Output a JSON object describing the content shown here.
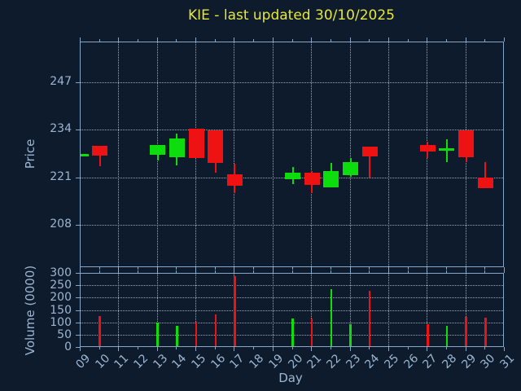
{
  "title": "KIE - last updated 30/10/2025",
  "colors": {
    "background": "#0e1b2c",
    "frame": "#84a7c8",
    "grid": "#b6c0ca",
    "label": "#9cb6d2",
    "title": "#e6e63c",
    "up": "#0ddd0d",
    "down": "#ee1212"
  },
  "chart_data": {
    "type": "candlestick+volume-bar",
    "title": "KIE - last updated 30/10/2025",
    "xlabel": "Day",
    "grid": "dotted, on both panels",
    "price_axis": {
      "label": "Price",
      "ticks": [
        208,
        221,
        234,
        247
      ],
      "range": [
        196.5,
        258
      ]
    },
    "volume_axis": {
      "label": "Volume (0000)",
      "ticks": [
        0,
        50,
        100,
        150,
        200,
        250,
        300
      ],
      "range": [
        0,
        300
      ]
    },
    "x_axis": {
      "tick_labels": [
        "09",
        "10",
        "11",
        "12",
        "13",
        "14",
        "15",
        "16",
        "17",
        "18",
        "19",
        "20",
        "21",
        "22",
        "23",
        "24",
        "25",
        "26",
        "27",
        "28",
        "29",
        "30",
        "31"
      ],
      "range": [
        9,
        31
      ],
      "grid_days": [
        11,
        13,
        15,
        17,
        19,
        21,
        23,
        25,
        27,
        29,
        31
      ]
    },
    "candles": [
      {
        "day": 9,
        "open": 227.2,
        "high": 227.6,
        "low": 227.2,
        "close": 227.5,
        "volume": 0,
        "dir": "up"
      },
      {
        "day": 10,
        "open": 229.9,
        "high": 229.9,
        "low": 224.3,
        "close": 227.1,
        "volume": 130,
        "dir": "down"
      },
      {
        "day": 13,
        "open": 227.3,
        "high": 230.1,
        "low": 225.8,
        "close": 230.1,
        "volume": 103,
        "dir": "up"
      },
      {
        "day": 14,
        "open": 226.8,
        "high": 233.1,
        "low": 224.5,
        "close": 231.7,
        "volume": 90,
        "dir": "up"
      },
      {
        "day": 15,
        "open": 234.5,
        "high": 234.5,
        "low": 226.4,
        "close": 226.4,
        "volume": 107,
        "dir": "down"
      },
      {
        "day": 16,
        "open": 234.0,
        "high": 234.0,
        "low": 222.5,
        "close": 225.1,
        "volume": 134,
        "dir": "down"
      },
      {
        "day": 17,
        "open": 222.1,
        "high": 225.0,
        "low": 217.0,
        "close": 219.0,
        "volume": 290,
        "dir": "down"
      },
      {
        "day": 20,
        "open": 220.8,
        "high": 224.0,
        "low": 219.3,
        "close": 222.5,
        "volume": 118,
        "dir": "up"
      },
      {
        "day": 21,
        "open": 222.5,
        "high": 223.0,
        "low": 216.9,
        "close": 219.1,
        "volume": 118,
        "dir": "down"
      },
      {
        "day": 22,
        "open": 218.4,
        "high": 225.2,
        "low": 218.4,
        "close": 222.9,
        "volume": 237,
        "dir": "up"
      },
      {
        "day": 23,
        "open": 221.8,
        "high": 226.5,
        "low": 221.3,
        "close": 225.3,
        "volume": 96,
        "dir": "up"
      },
      {
        "day": 24,
        "open": 229.5,
        "high": 229.5,
        "low": 221.2,
        "close": 226.9,
        "volume": 230,
        "dir": "down"
      },
      {
        "day": 27,
        "open": 230.0,
        "high": 231.0,
        "low": 226.4,
        "close": 228.3,
        "volume": 97,
        "dir": "down"
      },
      {
        "day": 28,
        "open": 228.5,
        "high": 231.5,
        "low": 225.3,
        "close": 229.2,
        "volume": 90,
        "dir": "up"
      },
      {
        "day": 29,
        "open": 234.0,
        "high": 234.0,
        "low": 225.3,
        "close": 226.8,
        "volume": 126,
        "dir": "down"
      },
      {
        "day": 30,
        "open": 221.2,
        "high": 225.3,
        "low": 218.3,
        "close": 218.3,
        "volume": 122,
        "dir": "down"
      }
    ]
  }
}
